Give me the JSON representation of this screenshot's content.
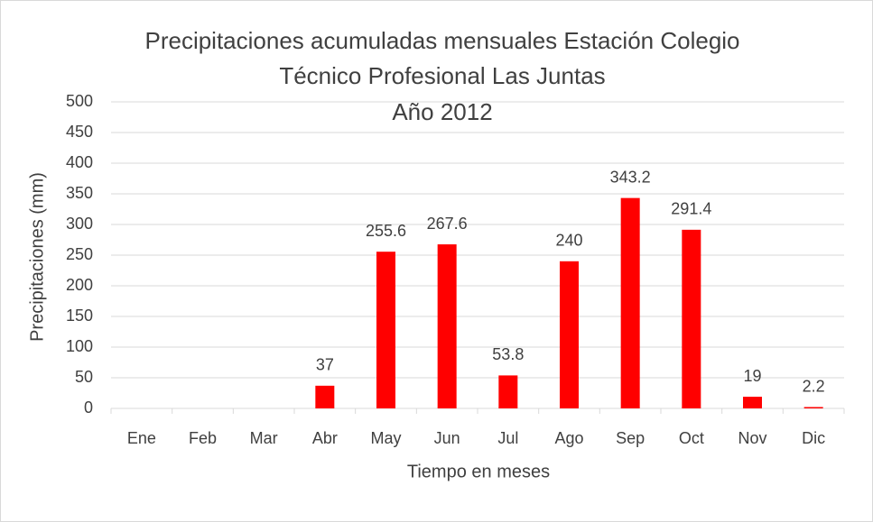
{
  "chart_data": {
    "type": "bar",
    "title": [
      "Precipitaciones acumuladas mensuales Estación Colegio",
      "Técnico Profesional Las Juntas",
      "Año 2012"
    ],
    "x_label": "Tiempo en meses",
    "y_label": "Precipitaciones (mm)",
    "categories": [
      "Ene",
      "Feb",
      "Mar",
      "Abr",
      "May",
      "Jun",
      "Jul",
      "Ago",
      "Sep",
      "Oct",
      "Nov",
      "Dic"
    ],
    "values": [
      null,
      null,
      null,
      37,
      255.6,
      267.6,
      53.8,
      240,
      343.2,
      291.4,
      19,
      2.2
    ],
    "color": "#ff0000",
    "ylim": [
      0,
      500
    ],
    "yticks": [
      0,
      50,
      100,
      150,
      200,
      250,
      300,
      350,
      400,
      450,
      500
    ],
    "grid": true
  }
}
